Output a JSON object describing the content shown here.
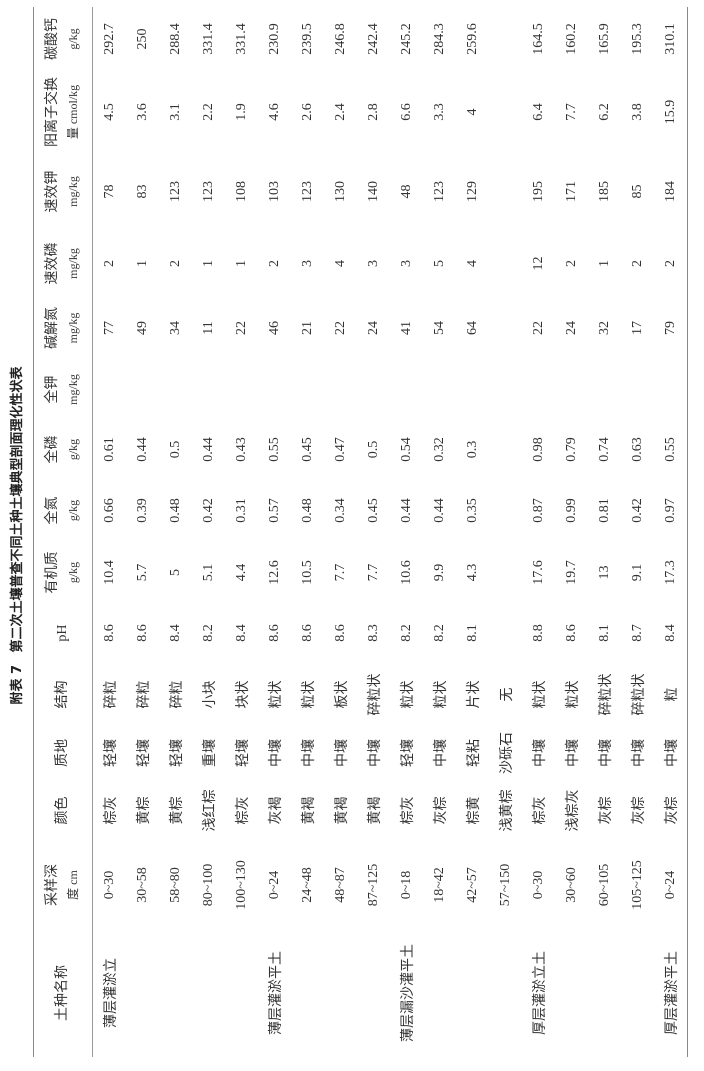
{
  "title": {
    "label": "附表 7",
    "text": "第二次土壤普查不同土种土壤典型剖面理化性状表"
  },
  "table": {
    "headers": [
      {
        "line1": "土种名称",
        "line2": ""
      },
      {
        "line1": "采样深",
        "line2": "度 cm"
      },
      {
        "line1": "颜色",
        "line2": ""
      },
      {
        "line1": "质地",
        "line2": ""
      },
      {
        "line1": "结构",
        "line2": ""
      },
      {
        "line1": "pH",
        "line2": ""
      },
      {
        "line1": "有机质",
        "line2": "g/kg"
      },
      {
        "line1": "全氮",
        "line2": "g/kg"
      },
      {
        "line1": "全磷",
        "line2": "g/kg"
      },
      {
        "line1": "全钾",
        "line2": "mg/kg"
      },
      {
        "line1": "碱解氮",
        "line2": "mg/kg"
      },
      {
        "line1": "速效磷",
        "line2": "mg/kg"
      },
      {
        "line1": "速效钾",
        "line2": "mg/kg"
      },
      {
        "line1": "阳离子交换",
        "line2": "量 cmol/kg"
      },
      {
        "line1": "碳酸钙",
        "line2": "g/kg"
      }
    ],
    "rows": [
      [
        "薄层灌淤立",
        "0~30",
        "棕灰",
        "轻壤",
        "碎粒",
        "8.6",
        "10.4",
        "0.66",
        "0.61",
        "",
        "77",
        "2",
        "78",
        "4.5",
        "292.7"
      ],
      [
        "",
        "30~58",
        "黄棕",
        "轻壤",
        "碎粒",
        "8.6",
        "5.7",
        "0.39",
        "0.44",
        "",
        "49",
        "1",
        "83",
        "3.6",
        "250"
      ],
      [
        "",
        "58~80",
        "黄棕",
        "轻壤",
        "碎粒",
        "8.4",
        "5",
        "0.48",
        "0.5",
        "",
        "34",
        "2",
        "123",
        "3.1",
        "288.4"
      ],
      [
        "",
        "80~100",
        "浅红棕",
        "重壤",
        "小块",
        "8.2",
        "5.1",
        "0.42",
        "0.44",
        "",
        "11",
        "1",
        "123",
        "2.2",
        "331.4"
      ],
      [
        "",
        "100~130",
        "棕灰",
        "轻壤",
        "块状",
        "8.4",
        "4.4",
        "0.31",
        "0.43",
        "",
        "22",
        "1",
        "108",
        "1.9",
        "331.4"
      ],
      [
        "薄层灌淤平土",
        "0~24",
        "灰褐",
        "中壤",
        "粒状",
        "8.6",
        "12.6",
        "0.57",
        "0.55",
        "",
        "46",
        "2",
        "103",
        "4.6",
        "230.9"
      ],
      [
        "",
        "24~48",
        "黄褐",
        "中壤",
        "粒状",
        "8.6",
        "10.5",
        "0.48",
        "0.45",
        "",
        "21",
        "3",
        "123",
        "2.6",
        "239.5"
      ],
      [
        "",
        "48~87",
        "黄褐",
        "中壤",
        "板状",
        "8.6",
        "7.7",
        "0.34",
        "0.47",
        "",
        "22",
        "4",
        "130",
        "2.4",
        "246.8"
      ],
      [
        "",
        "87~125",
        "黄褐",
        "中壤",
        "碎粒状",
        "8.3",
        "7.7",
        "0.45",
        "0.5",
        "",
        "24",
        "3",
        "140",
        "2.8",
        "242.4"
      ],
      [
        "薄层漏沙灌平土",
        "0~18",
        "棕灰",
        "轻壤",
        "粒状",
        "8.2",
        "10.6",
        "0.44",
        "0.54",
        "",
        "41",
        "3",
        "48",
        "6.6",
        "245.2"
      ],
      [
        "",
        "18~42",
        "灰棕",
        "中壤",
        "粒状",
        "8.2",
        "9.9",
        "0.44",
        "0.32",
        "",
        "54",
        "5",
        "123",
        "3.3",
        "284.3"
      ],
      [
        "",
        "42~57",
        "棕黄",
        "轻粘",
        "片状",
        "8.1",
        "4.3",
        "0.35",
        "0.3",
        "",
        "64",
        "4",
        "129",
        "4",
        "259.6"
      ],
      [
        "",
        "57~150",
        "浅黄棕",
        "沙砾石",
        "无",
        "",
        "",
        "",
        "",
        "",
        "",
        "",
        "",
        "",
        ""
      ],
      [
        "厚层灌淤立土",
        "0~30",
        "棕灰",
        "中壤",
        "粒状",
        "8.8",
        "17.6",
        "0.87",
        "0.98",
        "",
        "22",
        "12",
        "195",
        "6.4",
        "164.5"
      ],
      [
        "",
        "30~60",
        "浅棕灰",
        "中壤",
        "粒状",
        "8.6",
        "19.7",
        "0.99",
        "0.79",
        "",
        "24",
        "2",
        "171",
        "7.7",
        "160.2"
      ],
      [
        "",
        "60~105",
        "灰棕",
        "中壤",
        "碎粒状",
        "8.1",
        "13",
        "0.81",
        "0.74",
        "",
        "32",
        "1",
        "185",
        "6.2",
        "165.9"
      ],
      [
        "",
        "105~125",
        "灰棕",
        "中壤",
        "碎粒状",
        "8.7",
        "9.1",
        "0.42",
        "0.63",
        "",
        "17",
        "2",
        "85",
        "3.8",
        "195.3"
      ],
      [
        "厚层灌淤平土",
        "0~24",
        "灰棕",
        "中壤",
        "粒",
        "8.4",
        "17.3",
        "0.97",
        "0.55",
        "",
        "79",
        "2",
        "184",
        "15.9",
        "310.1"
      ]
    ]
  }
}
